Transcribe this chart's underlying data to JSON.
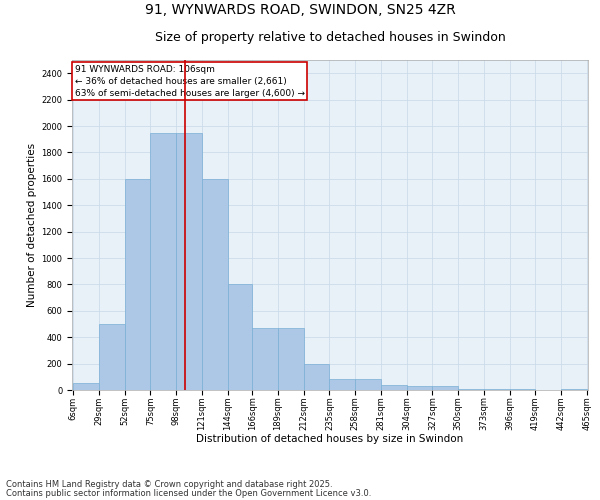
{
  "title": "91, WYNWARDS ROAD, SWINDON, SN25 4ZR",
  "subtitle": "Size of property relative to detached houses in Swindon",
  "xlabel": "Distribution of detached houses by size in Swindon",
  "ylabel": "Number of detached properties",
  "annotation_title": "91 WYNWARDS ROAD: 106sqm",
  "annotation_line1": "← 36% of detached houses are smaller (2,661)",
  "annotation_line2": "63% of semi-detached houses are larger (4,600) →",
  "footer_line1": "Contains HM Land Registry data © Crown copyright and database right 2025.",
  "footer_line2": "Contains public sector information licensed under the Open Government Licence v3.0.",
  "property_size": 106,
  "bar_left_edges": [
    6,
    29,
    52,
    75,
    98,
    121,
    144,
    166,
    189,
    212,
    235,
    258,
    281,
    304,
    327,
    350,
    373,
    396,
    419,
    442
  ],
  "bar_widths": [
    23,
    23,
    23,
    23,
    23,
    23,
    22,
    23,
    23,
    23,
    23,
    23,
    23,
    23,
    23,
    23,
    23,
    23,
    23,
    23
  ],
  "bar_heights": [
    50,
    500,
    1600,
    1950,
    1950,
    1600,
    800,
    470,
    470,
    195,
    80,
    80,
    35,
    30,
    30,
    5,
    5,
    5,
    0,
    5
  ],
  "tick_labels": [
    "6sqm",
    "29sqm",
    "52sqm",
    "75sqm",
    "98sqm",
    "121sqm",
    "144sqm",
    "166sqm",
    "189sqm",
    "212sqm",
    "235sqm",
    "258sqm",
    "281sqm",
    "304sqm",
    "327sqm",
    "350sqm",
    "373sqm",
    "396sqm",
    "419sqm",
    "442sqm",
    "465sqm"
  ],
  "ylim": [
    0,
    2500
  ],
  "yticks": [
    0,
    200,
    400,
    600,
    800,
    1000,
    1200,
    1400,
    1600,
    1800,
    2000,
    2200,
    2400
  ],
  "bar_color": "#adc8e6",
  "bar_edge_color": "#7aafd4",
  "vline_color": "#cc0000",
  "vline_x": 106,
  "grid_color": "#c8d8e8",
  "bg_color": "#e8f0f8",
  "annotation_box_color": "#cc0000",
  "title_fontsize": 10,
  "subtitle_fontsize": 9,
  "axis_label_fontsize": 7.5,
  "tick_fontsize": 6,
  "footer_fontsize": 6,
  "annotation_fontsize": 6.5
}
